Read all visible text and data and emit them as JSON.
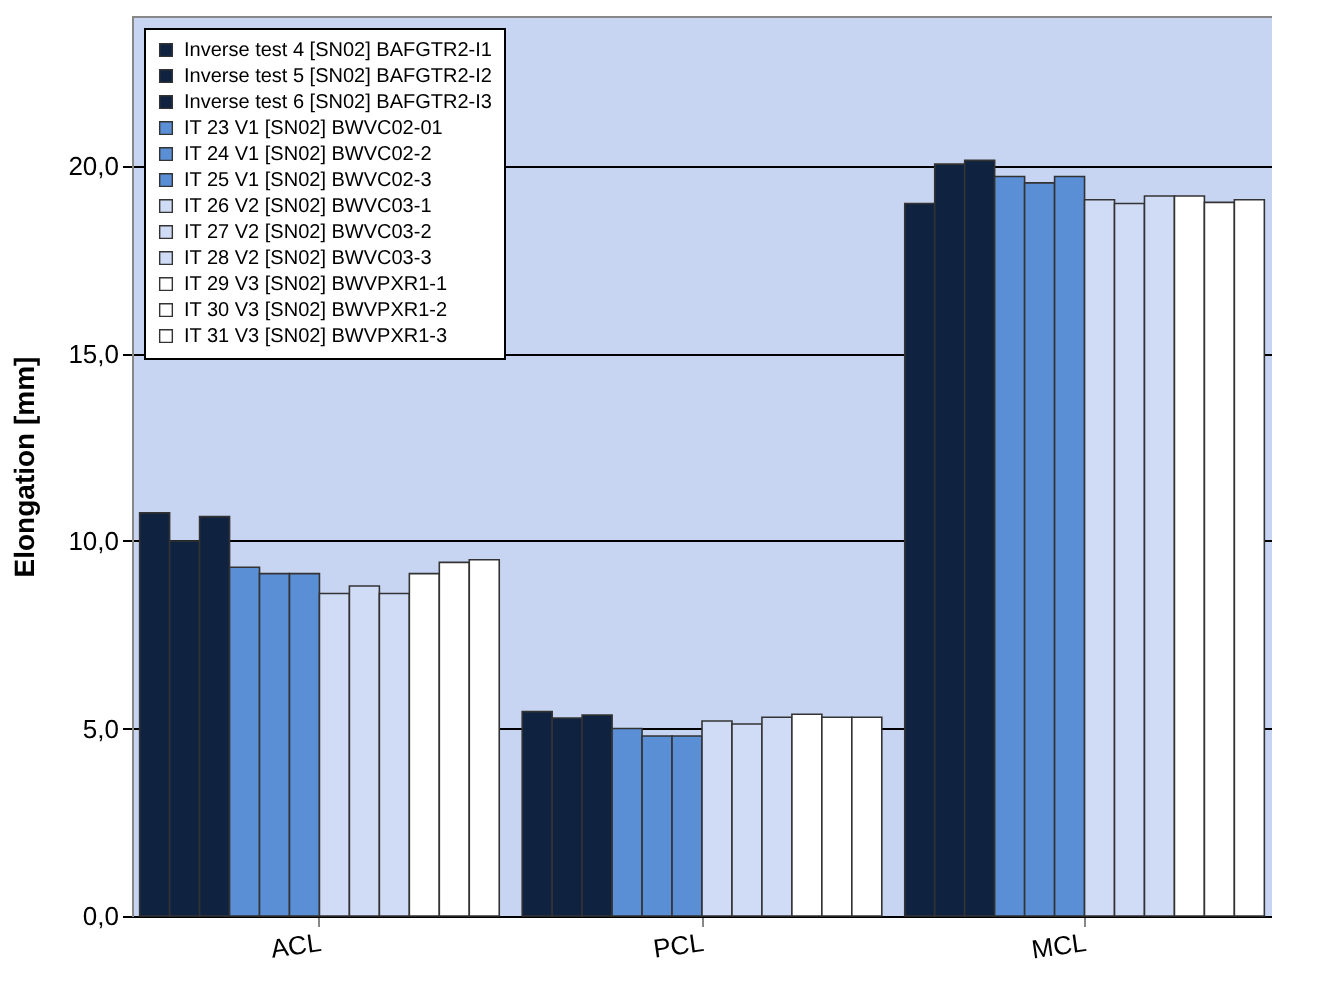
{
  "chart_data": {
    "type": "bar",
    "ylabel": "Elongation [mm]",
    "categories": [
      "ACL",
      "PCL",
      "MCL"
    ],
    "ylim": [
      0,
      24
    ],
    "yticks": [
      {
        "value": 0,
        "label": "0,0"
      },
      {
        "value": 5,
        "label": "5,0"
      },
      {
        "value": 10,
        "label": "10,0"
      },
      {
        "value": 15,
        "label": "15,0"
      },
      {
        "value": 20,
        "label": "20,0"
      }
    ],
    "grid": "y",
    "legend": "top left",
    "series": [
      {
        "name": "Inverse test 4 [SN02] BAFGTR2-I1",
        "color": "#0f2341",
        "values": [
          10.75,
          5.45,
          19.0
        ]
      },
      {
        "name": "Inverse test 5 [SN02] BAFGTR2-I2",
        "color": "#0f2341",
        "values": [
          10.0,
          5.28,
          20.05
        ]
      },
      {
        "name": "Inverse test 6 [SN02] BAFGTR2-I3",
        "color": "#0f2341",
        "values": [
          10.65,
          5.36,
          20.15
        ]
      },
      {
        "name": "IT 23 V1 [SN02] BWVC02-01",
        "color": "#5a8fd6",
        "values": [
          9.3,
          5.0,
          19.72
        ]
      },
      {
        "name": "IT 24 V1 [SN02] BWVC02-2",
        "color": "#5a8fd6",
        "values": [
          9.13,
          4.8,
          19.55
        ]
      },
      {
        "name": "IT 25 V1 [SN02] BWVC02-3",
        "color": "#5a8fd6",
        "values": [
          9.13,
          4.8,
          19.72
        ]
      },
      {
        "name": "IT 26 V2 [SN02] BWVC03-1",
        "color": "#d0dcf5",
        "values": [
          8.6,
          5.2,
          19.1
        ]
      },
      {
        "name": "IT 27 V2 [SN02] BWVC03-2",
        "color": "#d0dcf5",
        "values": [
          8.8,
          5.12,
          19.0
        ]
      },
      {
        "name": "IT 28 V2 [SN02] BWVC03-3",
        "color": "#d0dcf5",
        "values": [
          8.6,
          5.3,
          19.2
        ]
      },
      {
        "name": "IT 29 V3 [SN02] BWVPXR1-1",
        "color": "#ffffff",
        "values": [
          9.13,
          5.38,
          19.2
        ]
      },
      {
        "name": "IT 30 V3 [SN02] BWVPXR1-2",
        "color": "#ffffff",
        "values": [
          9.43,
          5.3,
          19.03
        ]
      },
      {
        "name": "IT 31 V3 [SN02] BWVPXR1-3",
        "color": "#ffffff",
        "values": [
          9.5,
          5.3,
          19.1
        ]
      }
    ]
  }
}
